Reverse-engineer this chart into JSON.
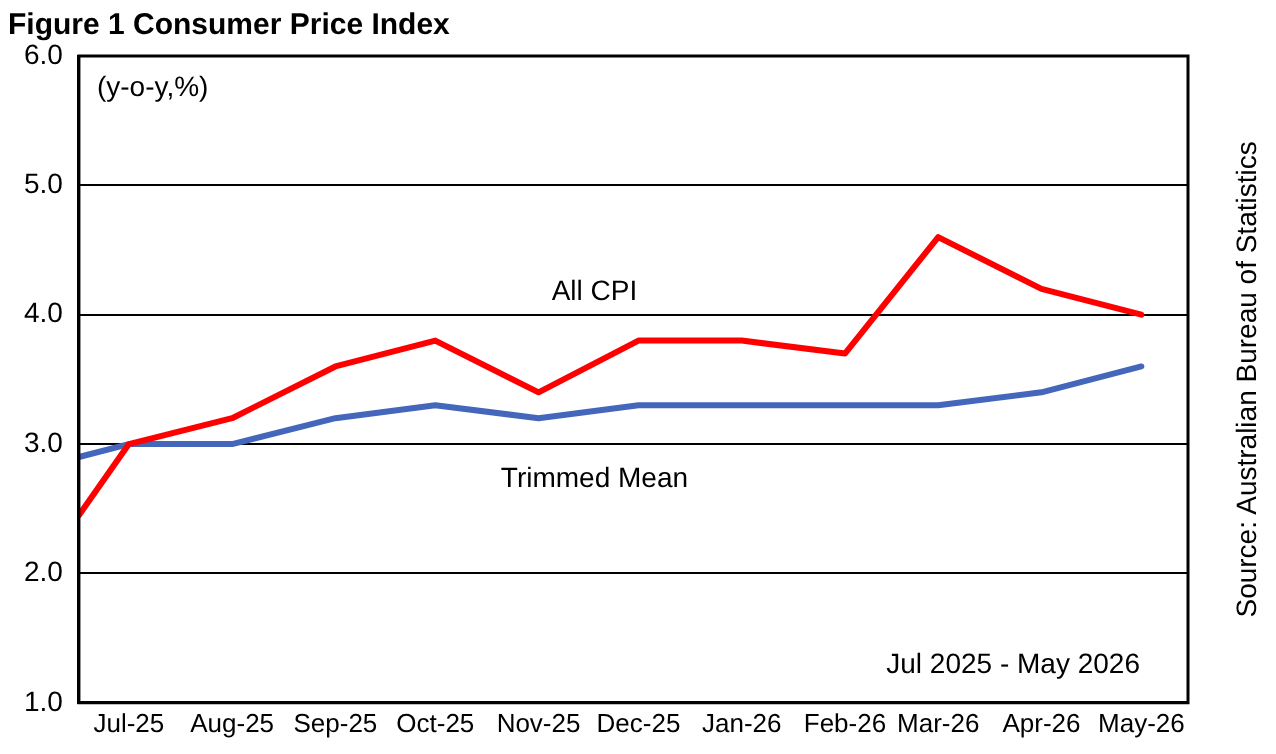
{
  "chart_data": {
    "type": "line",
    "title": "Figure 1 Consumer Price Index",
    "x": [
      "2025-06-16",
      "2025-07",
      "2025-08",
      "2025-09",
      "2025-10",
      "2025-11",
      "2025-12",
      "2026-01",
      "2026-02",
      "2026-03",
      "2026-04",
      "2026-05"
    ],
    "series": [
      {
        "name": "All CPI",
        "color": "#ff0000",
        "values": [
          2.45,
          3.0,
          3.2,
          3.6,
          3.8,
          3.4,
          3.8,
          3.8,
          3.7,
          4.6,
          4.2,
          4.0
        ]
      },
      {
        "name": "Trimmed Mean",
        "color": "#4466bb",
        "values": [
          2.9,
          3.0,
          3.0,
          3.2,
          3.3,
          3.2,
          3.3,
          3.3,
          3.3,
          3.3,
          3.4,
          3.6
        ]
      }
    ],
    "xlim": [
      "2025-06-16",
      "2026-05-15"
    ],
    "xticks": [
      {
        "value": "2025-07",
        "label": "Jul-25"
      },
      {
        "value": "2025-08",
        "label": "Aug-25"
      },
      {
        "value": "2025-09",
        "label": "Sep-25"
      },
      {
        "value": "2025-10",
        "label": "Oct-25"
      },
      {
        "value": "2025-11",
        "label": "Nov-25"
      },
      {
        "value": "2025-12",
        "label": "Dec-25"
      },
      {
        "value": "2026-01",
        "label": "Jan-26"
      },
      {
        "value": "2026-02",
        "label": "Feb-26"
      },
      {
        "value": "2026-03",
        "label": "Mar-26"
      },
      {
        "value": "2026-04",
        "label": "Apr-26"
      },
      {
        "value": "2026-05",
        "label": "May-26"
      }
    ],
    "ylim": [
      1,
      6
    ],
    "yticks": [
      {
        "value": 1,
        "label": "1.0"
      },
      {
        "value": 2,
        "label": "2.0"
      },
      {
        "value": 3,
        "label": "3.0"
      },
      {
        "value": 4,
        "label": "4.0"
      },
      {
        "value": 5,
        "label": "5.0"
      },
      {
        "value": 6,
        "label": "6.0"
      }
    ],
    "grid": "y",
    "legend": false,
    "marker": "none",
    "line_style": "solid",
    "annotations": [
      "(y-o-y,%)",
      "Jul 2025 - May 2026",
      "Source: Australian Bureau of Statistics"
    ]
  }
}
